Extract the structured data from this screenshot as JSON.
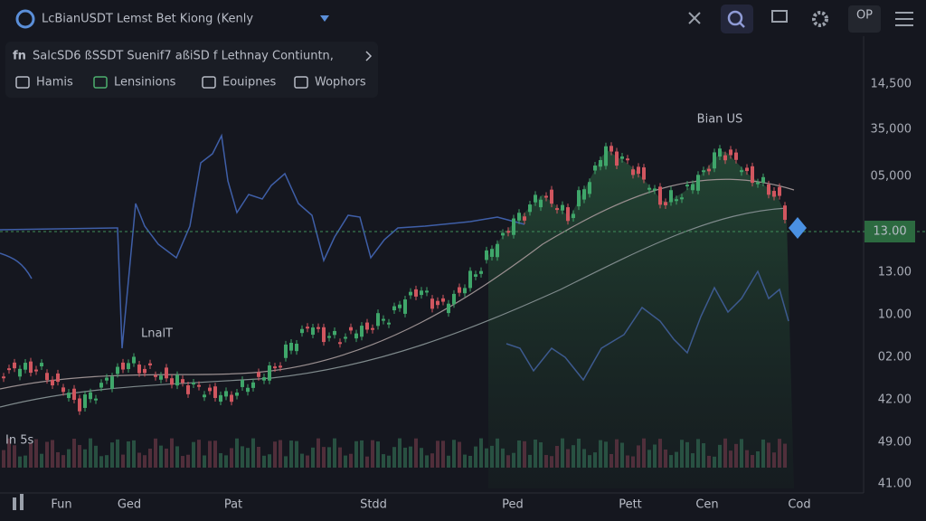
{
  "header": {
    "title": "LcBianUSDT Lemst Bet Kiong (Kenly",
    "badge": "OP"
  },
  "info": {
    "prefix": "fn",
    "text": "SalcSD6 ßSSDT  Suenif7 aßiSD f  Lethnay  Contiuntn,"
  },
  "tabs": [
    "Hamis",
    "Lensinions",
    "Eouipnes",
    "Wophors"
  ],
  "axis_labels": [
    "14,500",
    "35,000",
    "05,000",
    "13.00",
    "10.00",
    "02.00",
    "42.00",
    "49.00",
    "41.00"
  ],
  "price_tag": "13.00",
  "chart_labels": {
    "top": "Bian US",
    "mid": "LnalT",
    "volume": "In 5s"
  },
  "time_labels": [
    "Fun",
    "Ged",
    "Pat",
    "Stdd",
    "Ped",
    "Pett",
    "Cen",
    "Cod"
  ]
}
